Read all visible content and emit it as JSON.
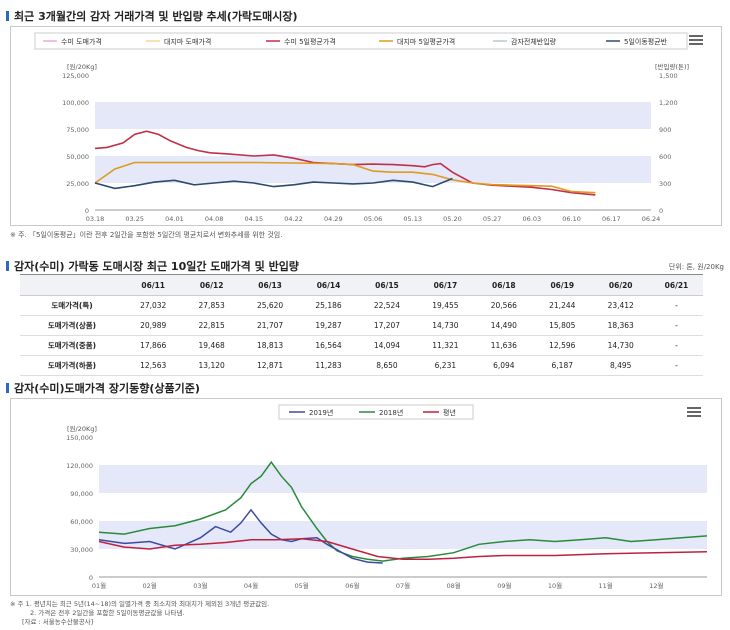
{
  "section1": {
    "title": "최근 3개월간의 감자 거래가격 및 반입량 추세(가락도매시장)",
    "note": "※ 주. 「5일이동평균」이란 전후 2일간을 포함한 5일간의 평균치로서 변화추세를 위한 것임."
  },
  "section2": {
    "title": "감자(수미) 가락동 도매시장 최근 10일간 도매가격 및 반입량",
    "unit": "단위: 톤, 원/20Kg"
  },
  "section3": {
    "title": "감자(수미)도매가격 장기동향(상품기준)",
    "note_lines": [
      "※ 주 1. 평년치는 최근 5년(14~18)의 일별가격 중 최소치와 최대치가 제외된 3개년 평균값임.",
      "2. 가격은 전후 2일간을 포함한 5일이동평균값을 나타냄.",
      "[자료 : 서울농수산물공사]"
    ]
  },
  "colors": {
    "accent": "#2a6bbd",
    "band": "#e4e8f8",
    "sumi_price": "#f0a8d8",
    "daeji_price": "#f5d99a",
    "sumi_ma": "#c0304a",
    "daeji_ma": "#e09a20",
    "total_in": "#b8c8d0",
    "ma_in": "#2a4a70",
    "y2019": "#3a4aa0",
    "y2018": "#2a8a3a",
    "normal": "#c02040"
  },
  "chart_data": [
    {
      "type": "line",
      "legend": [
        "수미 도매가격",
        "대지마 도매가격",
        "수미 5일평균가격",
        "대지마 5일평균가격",
        "감자전체반입량",
        "5일이동평균반"
      ],
      "legend_placement": "top",
      "y_left_unit": "[원/20Kg]",
      "y_right_unit": "[반입량(톤)]",
      "y_left_ticks": [
        "125,000",
        "100,000",
        "75,000",
        "50,000",
        "25,000",
        "0"
      ],
      "y_right_ticks": [
        "1,500",
        "1,200",
        "900",
        "600",
        "300",
        "0"
      ],
      "ylim_left": [
        0,
        125000
      ],
      "ylim_right": [
        0,
        1500
      ],
      "x_ticks": [
        "03.18",
        "03.25",
        "04.01",
        "04.08",
        "04.15",
        "04.22",
        "04.29",
        "05.06",
        "05.13",
        "05.20",
        "05.27",
        "06.03",
        "06.10",
        "06.17",
        "06.24"
      ],
      "series": [
        {
          "name": "수미 5일평균가격",
          "axis": "left",
          "x": [
            1,
            1.3,
            1.7,
            2,
            2.3,
            2.6,
            2.9,
            3.3,
            3.6,
            3.9,
            4.3,
            5,
            5.5,
            6,
            6.5,
            7,
            7.5,
            8,
            8.5,
            9,
            9.3,
            9.5,
            9.7,
            10,
            10.5,
            11,
            11.5,
            12,
            12.5,
            13,
            13.6
          ],
          "y": [
            57000,
            58000,
            62000,
            70000,
            73000,
            70000,
            64000,
            58000,
            55000,
            53000,
            52000,
            50000,
            51000,
            48000,
            44000,
            43000,
            42000,
            42500,
            42000,
            41000,
            40000,
            42000,
            43000,
            35000,
            25000,
            23000,
            22000,
            21000,
            19000,
            16000,
            14000
          ]
        },
        {
          "name": "대지마 5일평균가격",
          "axis": "left",
          "x": [
            1,
            1.5,
            2,
            3,
            4,
            5,
            6,
            7,
            7.5,
            8,
            8.5,
            9,
            9.5,
            10,
            10.5,
            11,
            11.5,
            12,
            12.5,
            13,
            13.6
          ],
          "y": [
            25000,
            38000,
            44000,
            44000,
            44000,
            44000,
            43500,
            43000,
            42000,
            36000,
            35000,
            35000,
            33000,
            28000,
            25000,
            23500,
            23000,
            22500,
            22000,
            17000,
            16000
          ]
        },
        {
          "name": "5일이동평균반",
          "axis": "right",
          "x": [
            1,
            1.5,
            2,
            2.5,
            3,
            3.5,
            4,
            4.5,
            5,
            5.5,
            6,
            6.5,
            7,
            7.5,
            8,
            8.5,
            9,
            9.5,
            10
          ],
          "y": [
            300,
            240,
            270,
            310,
            330,
            280,
            300,
            320,
            300,
            260,
            280,
            310,
            300,
            290,
            300,
            330,
            310,
            260,
            350
          ]
        }
      ]
    },
    {
      "type": "table",
      "columns": [
        "",
        "06/11",
        "06/12",
        "06/13",
        "06/14",
        "06/15",
        "06/17",
        "06/18",
        "06/19",
        "06/20",
        "06/21"
      ],
      "rows": [
        [
          "도매가격(특)",
          "27,032",
          "27,853",
          "25,620",
          "25,186",
          "22,524",
          "19,455",
          "20,566",
          "21,244",
          "23,412",
          "-"
        ],
        [
          "도매가격(상품)",
          "20,989",
          "22,815",
          "21,707",
          "19,287",
          "17,207",
          "14,730",
          "14,490",
          "15,805",
          "18,363",
          "-"
        ],
        [
          "도매가격(중품)",
          "17,866",
          "19,468",
          "18,813",
          "16,564",
          "14,094",
          "11,321",
          "11,636",
          "12,596",
          "14,730",
          "-"
        ],
        [
          "도매가격(하품)",
          "12,563",
          "13,120",
          "12,871",
          "11,283",
          "8,650",
          "6,231",
          "6,094",
          "6,187",
          "8,495",
          "-"
        ]
      ]
    },
    {
      "type": "line",
      "legend": [
        "2019년",
        "2018년",
        "평년"
      ],
      "legend_placement": "top",
      "y_unit": "[원/20Kg]",
      "y_ticks": [
        "150,000",
        "120,000",
        "90,000",
        "60,000",
        "30,000",
        "0"
      ],
      "ylim": [
        0,
        150000
      ],
      "x_ticks": [
        "01월",
        "02월",
        "03월",
        "04월",
        "05월",
        "06월",
        "07월",
        "08월",
        "09월",
        "10월",
        "11월",
        "12월"
      ],
      "xlim": [
        1,
        13
      ],
      "series": [
        {
          "name": "2018년",
          "x": [
            1,
            1.5,
            2,
            2.5,
            3,
            3.5,
            3.8,
            4,
            4.2,
            4.4,
            4.6,
            4.8,
            5,
            5.3,
            5.5,
            5.7,
            6,
            6.3,
            6.6,
            7,
            7.5,
            8,
            8.5,
            9,
            9.5,
            10,
            10.5,
            11,
            11.5,
            12,
            12.5,
            13
          ],
          "y": [
            48000,
            46000,
            52000,
            55000,
            62000,
            72000,
            85000,
            100000,
            108000,
            123000,
            108000,
            96000,
            75000,
            52000,
            38000,
            28000,
            22000,
            19000,
            17000,
            20000,
            22000,
            26000,
            35000,
            38000,
            40000,
            38000,
            40000,
            42000,
            38000,
            40000,
            42000,
            44000
          ]
        },
        {
          "name": "2019년",
          "x": [
            1,
            1.5,
            2,
            2.5,
            3,
            3.3,
            3.6,
            3.8,
            4,
            4.2,
            4.4,
            4.6,
            4.8,
            5,
            5.3,
            5.5,
            5.8,
            6,
            6.3,
            6.6
          ],
          "y": [
            40000,
            36000,
            38000,
            30000,
            42000,
            54000,
            48000,
            58000,
            72000,
            58000,
            46000,
            40000,
            38000,
            41000,
            42000,
            35000,
            26000,
            20000,
            16000,
            15000
          ]
        },
        {
          "name": "평년",
          "x": [
            1,
            1.5,
            2,
            2.5,
            3,
            3.5,
            4,
            4.5,
            5,
            5.5,
            6,
            6.5,
            7,
            7.5,
            8,
            8.5,
            9,
            10,
            11,
            12,
            13
          ],
          "y": [
            38000,
            32000,
            30000,
            34000,
            35000,
            37000,
            40000,
            40000,
            41000,
            38000,
            30000,
            22000,
            19000,
            19000,
            20000,
            22000,
            23000,
            23000,
            25000,
            26000,
            27000
          ]
        }
      ]
    }
  ]
}
